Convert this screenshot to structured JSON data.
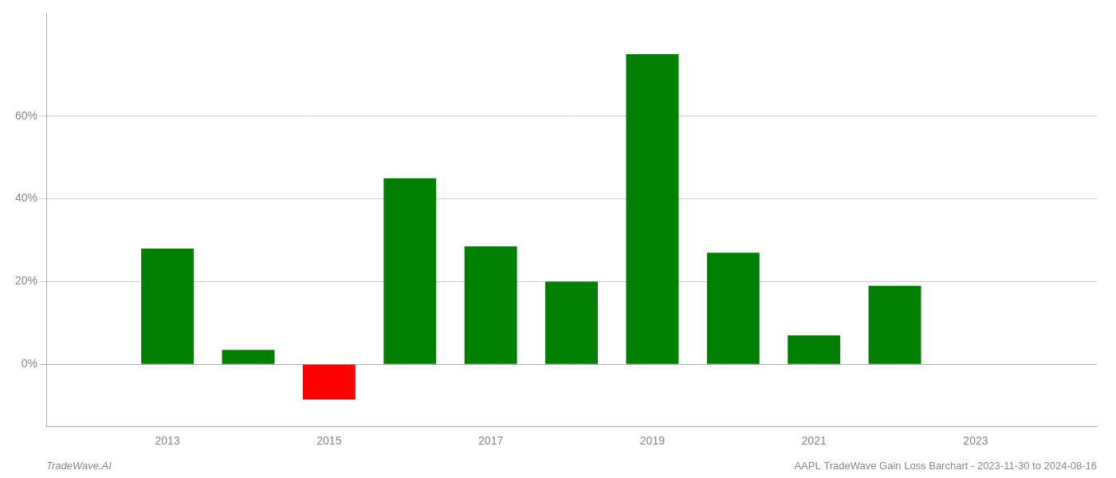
{
  "chart_data": {
    "type": "bar",
    "x": [
      2013,
      2014,
      2015,
      2016,
      2017,
      2018,
      2019,
      2020,
      2021,
      2022
    ],
    "values": [
      28.0,
      3.5,
      -8.5,
      45.0,
      28.5,
      20.0,
      75.0,
      27.0,
      7.0,
      19.0
    ],
    "colors": [
      "#008000",
      "#008000",
      "#ff0000",
      "#008000",
      "#008000",
      "#008000",
      "#008000",
      "#008000",
      "#008000",
      "#008000"
    ],
    "xlim": [
      2011.5,
      2024.5
    ],
    "xticks": [
      2013,
      2015,
      2017,
      2019,
      2021,
      2023
    ],
    "ylim": [
      -15,
      85
    ],
    "yticks": [
      {
        "value": 0,
        "label": "0%"
      },
      {
        "value": 20,
        "label": "20%"
      },
      {
        "value": 40,
        "label": "40%"
      },
      {
        "value": 60,
        "label": "60%"
      }
    ],
    "grid": "y",
    "annotations": [
      "TradeWave.AI",
      "AAPL TradeWave Gain Loss Barchart - 2023-11-30 to 2024-08-16"
    ]
  }
}
